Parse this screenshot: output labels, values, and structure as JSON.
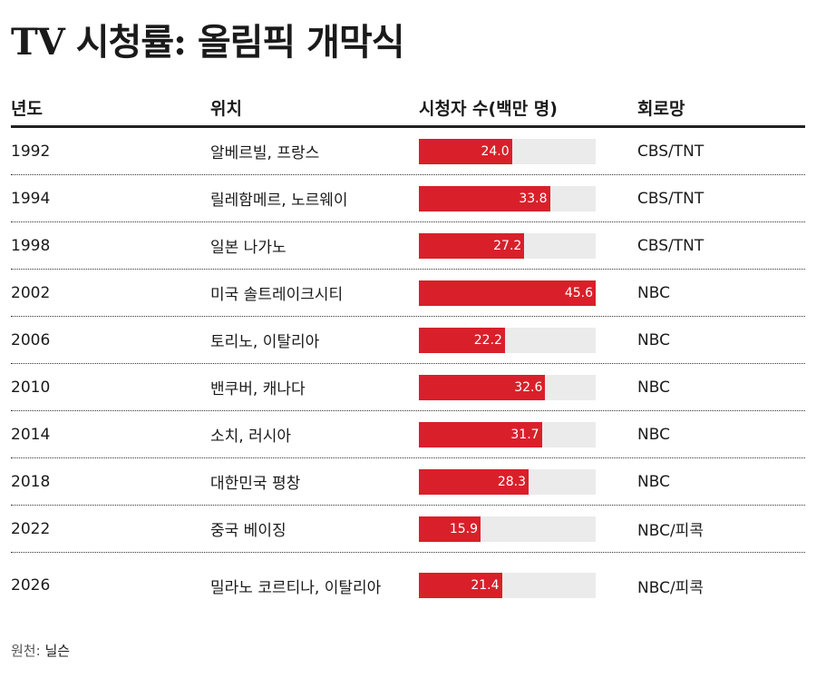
{
  "header": {
    "title": "TV 시청률: 올림픽 개막식"
  },
  "table": {
    "columns": [
      "년도",
      "위치",
      "시청자 수(백만 명)",
      "회로망"
    ],
    "rows": [
      {
        "year": "1992",
        "location": "알베르빌, 프랑스",
        "viewers": 24.0,
        "viewers_label": "24.0",
        "network": "CBS/TNT"
      },
      {
        "year": "1994",
        "location": "릴레함메르, 노르웨이",
        "viewers": 33.8,
        "viewers_label": "33.8",
        "network": "CBS/TNT"
      },
      {
        "year": "1998",
        "location": "일본 나가노",
        "viewers": 27.2,
        "viewers_label": "27.2",
        "network": "CBS/TNT"
      },
      {
        "year": "2002",
        "location": "미국 솔트레이크시티",
        "viewers": 45.6,
        "viewers_label": "45.6",
        "network": "NBC"
      },
      {
        "year": "2006",
        "location": "토리노, 이탈리아",
        "viewers": 22.2,
        "viewers_label": "22.2",
        "network": "NBC"
      },
      {
        "year": "2010",
        "location": "밴쿠버, 캐나다",
        "viewers": 32.6,
        "viewers_label": "32.6",
        "network": "NBC"
      },
      {
        "year": "2014",
        "location": "소치, 러시아",
        "viewers": 31.7,
        "viewers_label": "31.7",
        "network": "NBC"
      },
      {
        "year": "2018",
        "location": "대한민국 평창",
        "viewers": 28.3,
        "viewers_label": "28.3",
        "network": "NBC"
      },
      {
        "year": "2022",
        "location": "중국 베이징",
        "viewers": 15.9,
        "viewers_label": "15.9",
        "network": "NBC/피콕"
      },
      {
        "year": "2026",
        "location": "밀라노 코르티나, 이탈리아",
        "viewers": 21.4,
        "viewers_label": "21.4",
        "network": "NBC/피콕"
      }
    ]
  },
  "source": {
    "label": "원천:",
    "text": "닐슨"
  }
}
